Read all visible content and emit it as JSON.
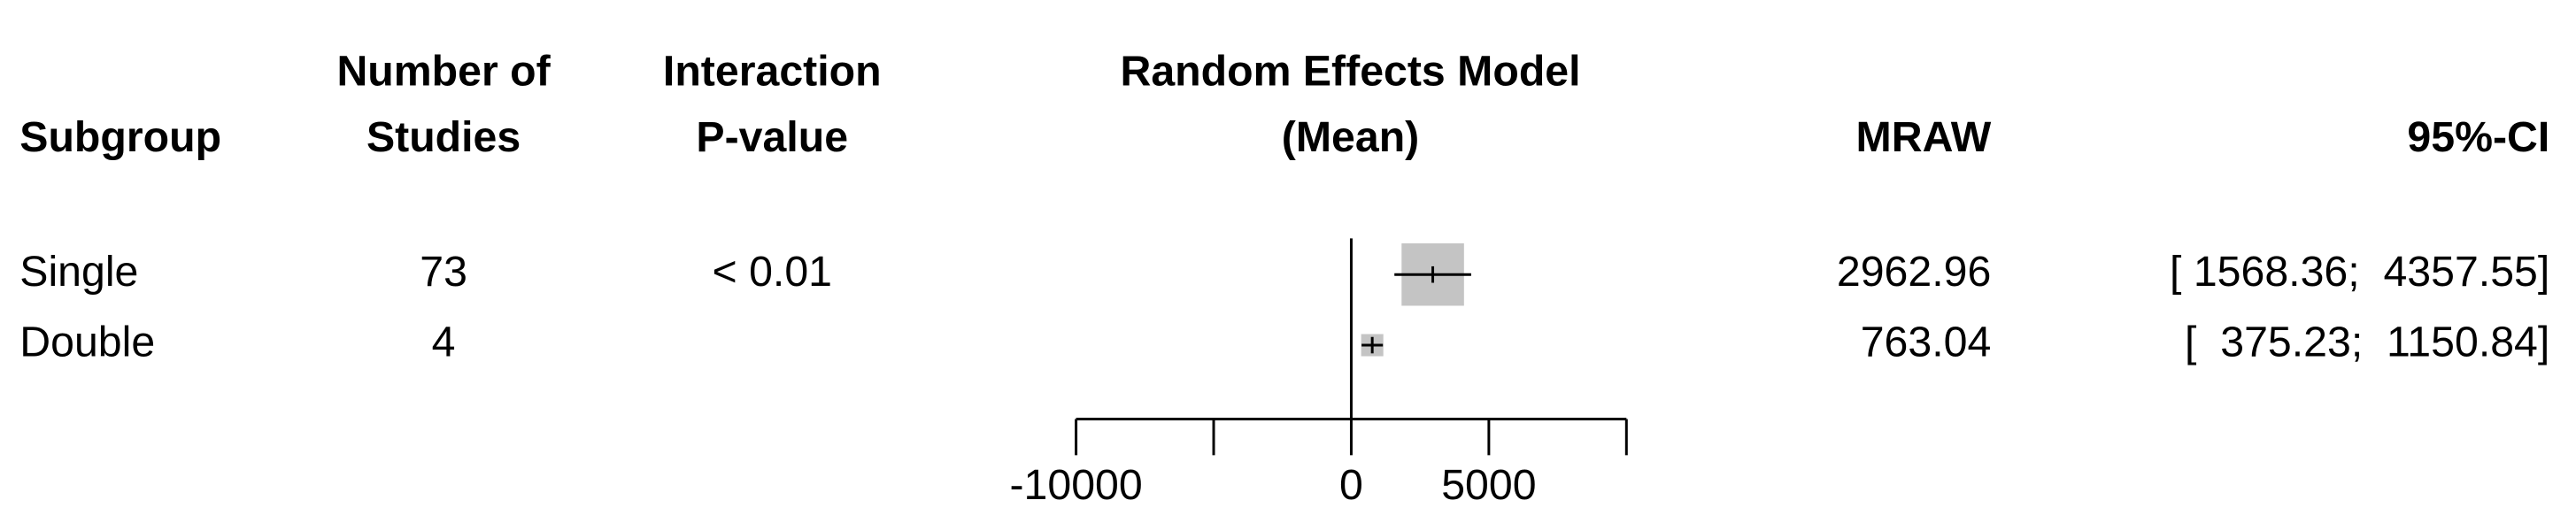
{
  "chart_data": {
    "type": "forest",
    "columns": {
      "subgroup": "Subgroup",
      "studies": [
        "Number of",
        "Studies"
      ],
      "pvalue": [
        "Interaction",
        "P-value"
      ],
      "model": [
        "Random Effects Model",
        "(Mean)"
      ],
      "mraw": "MRAW",
      "ci": "95%-CI"
    },
    "categories": [
      "Single",
      "Double"
    ],
    "studies": [
      73,
      4
    ],
    "interaction_p": "< 0.01",
    "values": [
      2962.96,
      763.04
    ],
    "ci_lower": [
      1568.36,
      375.23
    ],
    "ci_upper": [
      4357.55,
      1150.84
    ],
    "ci_labels": [
      "[ 1568.36;  4357.55]",
      "[  375.23;  1150.84]"
    ],
    "xlim": [
      -10000,
      10000
    ],
    "xticks": [
      {
        "value": -10000,
        "label": "-10000"
      },
      {
        "value": -5000
      },
      0,
      5000,
      {
        "value": 10000
      }
    ],
    "square_color": "#c4c4c4"
  }
}
